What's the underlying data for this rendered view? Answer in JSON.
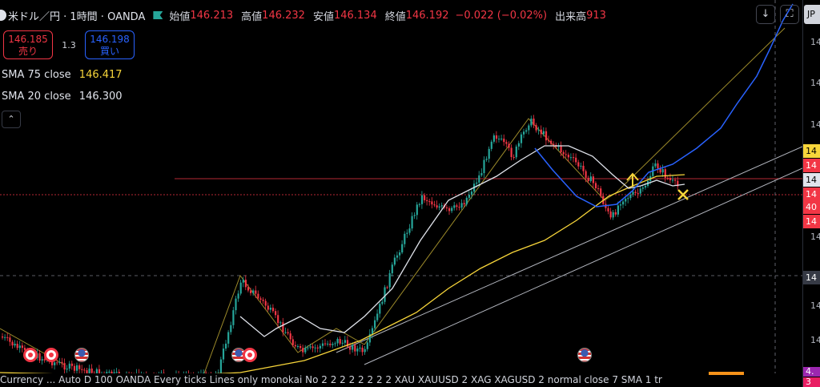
{
  "header": {
    "symbol": "米ドル／円 · 1時間 · OANDA",
    "open_label": "始値",
    "open_value": "146.213",
    "high_label": "高値",
    "high_value": "146.232",
    "low_label": "安値",
    "low_value": "146.134",
    "close_label": "終値",
    "close_value": "146.192",
    "change": "−0.022 (−0.02%)",
    "volume_label": "出来高",
    "volume_value": "913"
  },
  "trade": {
    "sell_price": "146.185",
    "sell_label": "売り",
    "spread": "1.3",
    "buy_price": "146.198",
    "buy_label": "買い"
  },
  "indicators": [
    {
      "label": "SMA 75 close",
      "value": "146.417",
      "color": "#f7d53a"
    },
    {
      "label": "SMA 20 close",
      "value": "146.300",
      "color": "#e0e3eb"
    }
  ],
  "controls": {
    "collapse_glyph": "⌃",
    "download_glyph": "↓",
    "fullscreen_glyph": "⛶",
    "language": "JP"
  },
  "price_axis": {
    "ticks": [
      "14",
      "14",
      "14",
      "14",
      "14",
      "14",
      "14",
      "14",
      "14"
    ],
    "labels": [
      {
        "text": "14",
        "color": "#f7d53a"
      },
      {
        "text": "14",
        "color": "#f23645"
      },
      {
        "text": "14",
        "color": "#000000"
      },
      {
        "text": "14",
        "color": "#f23645"
      },
      {
        "text": "40",
        "color": "#f23645"
      },
      {
        "text": "14",
        "color": "#f23645"
      }
    ],
    "bottom_labels": [
      "4.",
      "3"
    ]
  },
  "bottom_bar": {
    "text": "Currency ... Auto D 100 OANDA Every ticks Lines only monokai No 2 2 2 2 2 2 2 2 XAU XAUUSD 2 XAG XAGUSD 2 normal close 7 SMA 1 tr"
  },
  "colors": {
    "up": "#26a69a",
    "down": "#f23645",
    "sma75": "#f7d53a",
    "sma20": "#e0e3eb",
    "blue": "#2962ff",
    "red_line": "#f23645",
    "trend": "#b2b5be",
    "olive": "#9c8a2a"
  },
  "icons": [
    "symbol-logo-icon",
    "green-flag-icon",
    "download-icon",
    "fullscreen-icon",
    "collapse-chevron-icon",
    "event-flag-icon",
    "cross-marker-icon",
    "up-arrow-icon"
  ]
}
